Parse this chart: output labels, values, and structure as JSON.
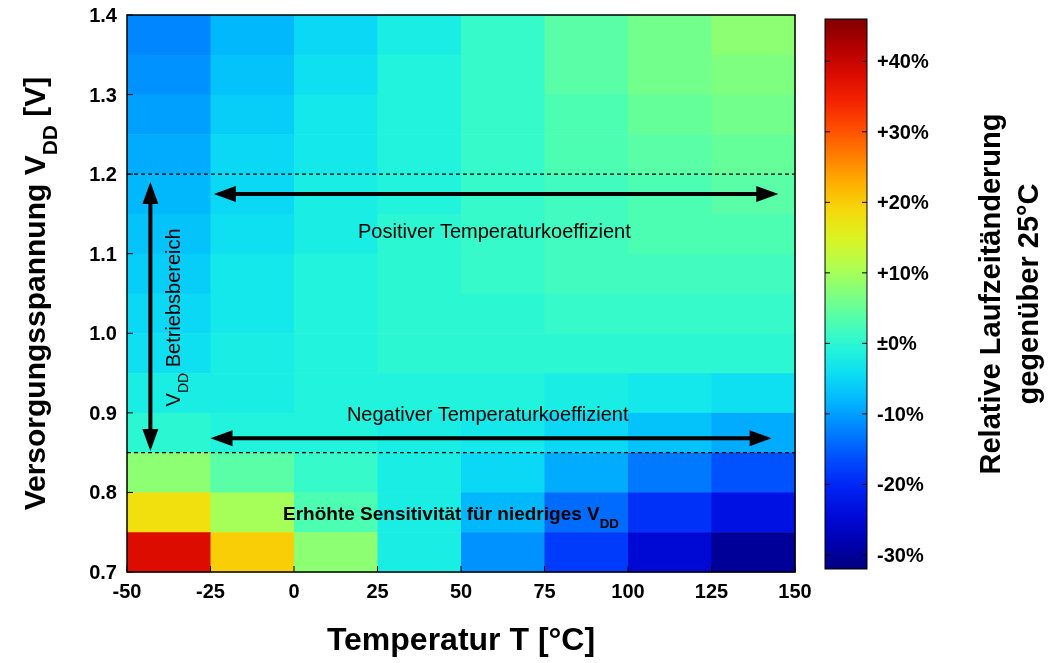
{
  "chart_data": {
    "type": "heatmap",
    "xlabel": "Temperatur T [°C]",
    "ylabel": "Versorgungsspannung V$_{DD}$ [V]",
    "clabel": "Relative Laufzeitänderung\ngegenüber 25°C",
    "xlim": [
      -50,
      150
    ],
    "xticks": [
      -50,
      -25,
      0,
      25,
      50,
      75,
      100,
      125,
      150
    ],
    "ylim": [
      0.7,
      1.4
    ],
    "yticks": [
      {
        "value": 0.7,
        "label": "0.7"
      },
      {
        "value": 0.8,
        "label": "0.8"
      },
      {
        "value": 0.9,
        "label": "0.9"
      },
      {
        "value": 1.0,
        "label": "1.0"
      },
      {
        "value": 1.1,
        "label": "1.1"
      },
      {
        "value": 1.2,
        "label": "1.2"
      },
      {
        "value": 1.3,
        "label": "1.3"
      },
      {
        "value": 1.4,
        "label": "1.4"
      }
    ],
    "clim": [
      -32,
      46
    ],
    "cticks": [
      {
        "value": -30,
        "label": "-30%"
      },
      {
        "value": -20,
        "label": "-20%"
      },
      {
        "value": -10,
        "label": "-10%"
      },
      {
        "value": 0,
        "label": "±0%"
      },
      {
        "value": 10,
        "label": "+10%"
      },
      {
        "value": 20,
        "label": "+20%"
      },
      {
        "value": 30,
        "label": "+30%"
      },
      {
        "value": 40,
        "label": "+40%"
      }
    ],
    "cells": [
      [
        -12,
        -8,
        -5,
        -2,
        1,
        4,
        6,
        8
      ],
      [
        -11,
        -7,
        -4,
        -1,
        1,
        4,
        6,
        7
      ],
      [
        -10,
        -6,
        -3,
        -1,
        1,
        3,
        5,
        6
      ],
      [
        -9,
        -5,
        -3,
        -1,
        1,
        3,
        4,
        5
      ],
      [
        -8,
        -5,
        -2,
        -1,
        1,
        2,
        3,
        4
      ],
      [
        -7,
        -4,
        -2,
        0,
        1,
        2,
        3,
        3
      ],
      [
        -6,
        -3,
        -1,
        0,
        1,
        2,
        2,
        2
      ],
      [
        -5,
        -3,
        -1,
        0,
        0,
        1,
        1,
        1
      ],
      [
        -4,
        -2,
        -1,
        0,
        0,
        0,
        0,
        0
      ],
      [
        -2,
        -2,
        -1,
        -1,
        -1,
        -2,
        -3,
        -4
      ],
      [
        0,
        -1,
        -1,
        -2,
        -3,
        -5,
        -7,
        -9
      ],
      [
        8,
        4,
        1,
        -2,
        -5,
        -9,
        -13,
        -16
      ],
      [
        18,
        10,
        3,
        -2,
        -8,
        -14,
        -19,
        -23
      ],
      [
        38,
        20,
        8,
        -2,
        -11,
        -18,
        -25,
        -30
      ]
    ],
    "ref_lines": [
      {
        "axis": "y",
        "value": 1.2,
        "line_style": "dashed"
      },
      {
        "axis": "y",
        "value": 0.85,
        "line_style": "dashed"
      }
    ],
    "annotations": [
      "Positiver Temperaturkoeffizient",
      "Negativer Temperaturkoeffizient",
      "V$_{DD}$ Betriebsbereich",
      "Erhöhte Sensitivität für niedriges V$_{DD}$"
    ],
    "grid": false
  }
}
